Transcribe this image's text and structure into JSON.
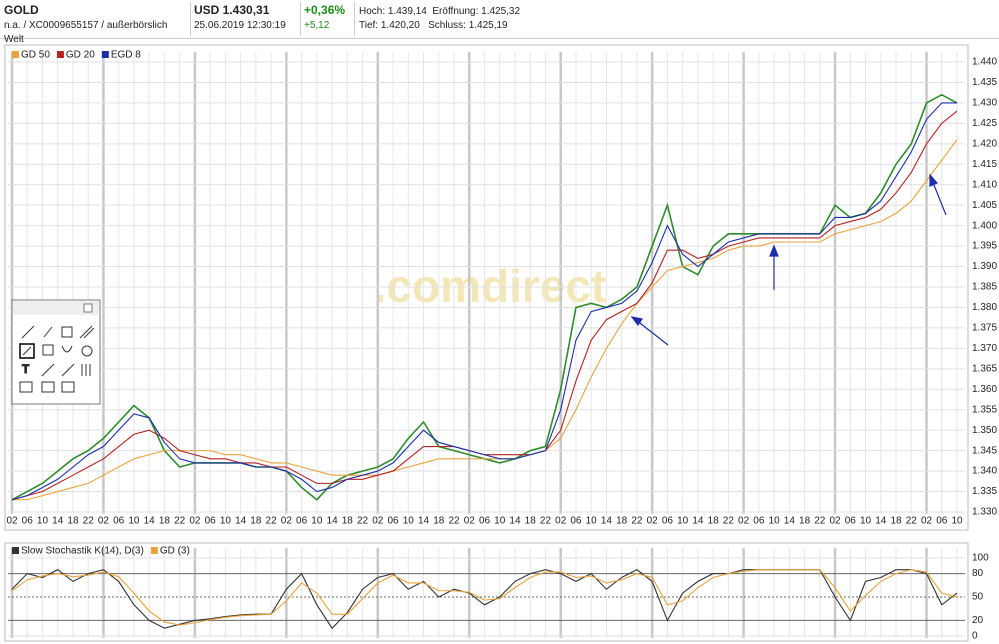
{
  "header": {
    "name": "GOLD",
    "sub": "n.a. / XC0009655157 / außerbörslich Welt",
    "price": "USD 1.430,31",
    "datetime": "25.06.2019 12:30:19",
    "change_pct": "+0,36%",
    "change_abs": "+5,12",
    "high": "Hoch: 1.439,14",
    "open": "Eröffnung: 1.425,32",
    "low": "Tief: 1.420,20",
    "close": "Schluss: 1.425,19"
  },
  "watermark": ".comdirect",
  "chart_data": [
    {
      "type": "line",
      "categories": [
        "02",
        "06",
        "10",
        "14",
        "18",
        "22",
        "02",
        "06",
        "10",
        "14",
        "18",
        "22",
        "02",
        "06",
        "10",
        "14",
        "18",
        "22",
        "02",
        "06",
        "10",
        "14",
        "18",
        "22",
        "02",
        "06",
        "10",
        "14",
        "18",
        "22",
        "02",
        "06",
        "10",
        "14",
        "18",
        "22",
        "02",
        "06",
        "10",
        "14",
        "18",
        "22",
        "02",
        "06",
        "10",
        "14",
        "18",
        "22",
        "02",
        "06",
        "10",
        "14",
        "18",
        "22",
        "02",
        "06",
        "10",
        "14",
        "18",
        "22",
        "02",
        "06",
        "10"
      ],
      "series": [
        {
          "color": "#2e8b2e",
          "values": [
            1333,
            1335,
            1337,
            1340,
            1343,
            1345,
            1348,
            1352,
            1356,
            1353,
            1345,
            1341,
            1342,
            1342,
            1342,
            1342,
            1341,
            1341,
            1340,
            1336,
            1333,
            1337,
            1339,
            1340,
            1341,
            1343,
            1348,
            1352,
            1346,
            1345,
            1344,
            1343,
            1342,
            1343,
            1345,
            1346,
            1360,
            1380,
            1381,
            1380,
            1382,
            1385,
            1395,
            1405,
            1390,
            1388,
            1395,
            1398,
            1398,
            1398,
            1398,
            1398,
            1398,
            1398,
            1405,
            1402,
            1403,
            1408,
            1415,
            1420,
            1430,
            1432,
            1430
          ]
        },
        {
          "name": "GD 50",
          "color": "#e8a33c",
          "values": [
            1333,
            1333,
            1334,
            1335,
            1336,
            1337,
            1339,
            1341,
            1343,
            1344,
            1345,
            1345,
            1345,
            1345,
            1344,
            1344,
            1343,
            1342,
            1342,
            1341,
            1340,
            1339,
            1339,
            1339,
            1339,
            1340,
            1341,
            1342,
            1343,
            1343,
            1343,
            1343,
            1343,
            1343,
            1344,
            1345,
            1348,
            1355,
            1363,
            1370,
            1376,
            1381,
            1385,
            1389,
            1390,
            1391,
            1392,
            1394,
            1395,
            1395,
            1396,
            1396,
            1396,
            1396,
            1398,
            1399,
            1400,
            1401,
            1403,
            1406,
            1411,
            1416,
            1421
          ]
        },
        {
          "name": "GD 20",
          "color": "#b22222",
          "values": [
            1333,
            1334,
            1335,
            1337,
            1339,
            1341,
            1343,
            1346,
            1349,
            1350,
            1348,
            1345,
            1344,
            1343,
            1343,
            1342,
            1342,
            1341,
            1341,
            1339,
            1337,
            1337,
            1338,
            1338,
            1339,
            1340,
            1343,
            1346,
            1346,
            1346,
            1345,
            1344,
            1344,
            1344,
            1344,
            1345,
            1350,
            1362,
            1372,
            1377,
            1379,
            1381,
            1386,
            1394,
            1394,
            1392,
            1393,
            1395,
            1396,
            1397,
            1397,
            1397,
            1397,
            1397,
            1400,
            1401,
            1402,
            1404,
            1408,
            1413,
            1420,
            1425,
            1428
          ]
        },
        {
          "name": "EGD 8",
          "color": "#1c2ea8",
          "values": [
            1333,
            1334,
            1336,
            1338,
            1341,
            1344,
            1346,
            1350,
            1354,
            1353,
            1347,
            1343,
            1342,
            1342,
            1342,
            1342,
            1341,
            1341,
            1340,
            1338,
            1335,
            1336,
            1338,
            1339,
            1340,
            1342,
            1346,
            1350,
            1347,
            1346,
            1345,
            1344,
            1343,
            1343,
            1344,
            1345,
            1355,
            1372,
            1379,
            1380,
            1381,
            1384,
            1391,
            1400,
            1393,
            1390,
            1393,
            1396,
            1397,
            1398,
            1398,
            1398,
            1398,
            1398,
            1402,
            1402,
            1403,
            1406,
            1412,
            1418,
            1426,
            1430,
            1430
          ]
        }
      ],
      "ylim": [
        1330,
        1440
      ],
      "yticks": [
        {
          "value": 1330,
          "label": "1.330"
        },
        {
          "value": 1335,
          "label": "1.335"
        },
        {
          "value": 1340,
          "label": "1.340"
        },
        {
          "value": 1345,
          "label": "1.345"
        },
        {
          "value": 1350,
          "label": "1.350"
        },
        {
          "value": 1355,
          "label": "1.355"
        },
        {
          "value": 1360,
          "label": "1.360"
        },
        {
          "value": 1365,
          "label": "1.365"
        },
        {
          "value": 1370,
          "label": "1.370"
        },
        {
          "value": 1375,
          "label": "1.375"
        },
        {
          "value": 1380,
          "label": "1.380"
        },
        {
          "value": 1385,
          "label": "1.385"
        },
        {
          "value": 1390,
          "label": "1.390"
        },
        {
          "value": 1395,
          "label": "1.395"
        },
        {
          "value": 1400,
          "label": "1.400"
        },
        {
          "value": 1405,
          "label": "1.405"
        },
        {
          "value": 1410,
          "label": "1.410"
        },
        {
          "value": 1415,
          "label": "1.415"
        },
        {
          "value": 1420,
          "label": "1.420"
        },
        {
          "value": 1425,
          "label": "1.425"
        },
        {
          "value": 1430,
          "label": "1.430"
        },
        {
          "value": 1435,
          "label": "1.435"
        },
        {
          "value": 1440,
          "label": "1.440"
        }
      ],
      "grid": true
    },
    {
      "type": "line",
      "series": [
        {
          "name": "Slow Stochastik K(14), D(3)",
          "color": "#333333",
          "values": [
            60,
            80,
            75,
            85,
            70,
            80,
            85,
            70,
            40,
            20,
            10,
            15,
            20,
            22,
            25,
            27,
            28,
            28,
            60,
            80,
            40,
            10,
            30,
            60,
            75,
            80,
            60,
            70,
            50,
            60,
            55,
            40,
            50,
            70,
            80,
            85,
            80,
            70,
            80,
            60,
            75,
            85,
            70,
            20,
            55,
            70,
            80,
            80,
            85,
            85,
            85,
            85,
            85,
            85,
            50,
            20,
            70,
            75,
            85,
            85,
            80,
            40,
            55
          ]
        },
        {
          "name": "GD (3)",
          "color": "#e8a33c",
          "values": [
            58,
            72,
            77,
            80,
            76,
            78,
            82,
            76,
            55,
            32,
            18,
            14,
            17,
            21,
            24,
            26,
            27,
            28,
            45,
            68,
            55,
            28,
            28,
            48,
            68,
            78,
            68,
            68,
            58,
            58,
            56,
            46,
            48,
            62,
            75,
            82,
            82,
            75,
            77,
            68,
            72,
            80,
            75,
            40,
            45,
            62,
            75,
            80,
            83,
            85,
            85,
            85,
            85,
            85,
            62,
            32,
            52,
            70,
            80,
            85,
            82,
            55,
            50
          ]
        }
      ],
      "ylim": [
        0,
        100
      ],
      "yticks": [
        0,
        20,
        50,
        80,
        100
      ],
      "grid": true
    }
  ]
}
